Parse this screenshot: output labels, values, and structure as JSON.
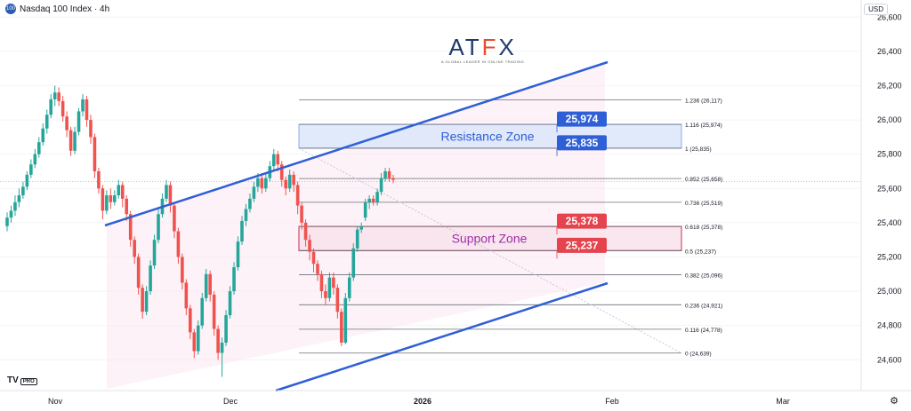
{
  "header": {
    "symbol_badge": "100",
    "title": "Nasdaq 100 Index · 4h"
  },
  "currency": "USD",
  "logo": {
    "text_a": "AT",
    "text_f": "F",
    "text_x": "X",
    "tagline": "A GLOBAL LEADER IN ONLINE TRADING"
  },
  "watermark": {
    "brand": "TV",
    "pro": "PRO"
  },
  "icons": {
    "settings": "gear-icon"
  },
  "colors": {
    "up": "#26a69a",
    "down": "#ef5350",
    "channel": "#2f5fd6",
    "resistance_label": "#2f5fd6",
    "support_label": "#e5434d",
    "zone_text_resistance": "#2f5fd6",
    "zone_text_support": "#9b2fa8"
  },
  "chart_data": {
    "type": "candlestick",
    "xlabels": [
      "Nov",
      "Dec",
      "2026",
      "Feb",
      "Mar"
    ],
    "ylim": [
      24420,
      26700
    ],
    "yticks": [
      "24,600",
      "24,800",
      "25,000",
      "25,200",
      "25,400",
      "25,600",
      "25,800",
      "26,000",
      "26,200",
      "26,400",
      "26,600"
    ],
    "ytick_values": [
      24600,
      24800,
      25000,
      25200,
      25400,
      25600,
      25800,
      26000,
      26200,
      26400,
      26600
    ],
    "fibonacci": [
      {
        "label": "1.236 (26,117)",
        "value": 26117
      },
      {
        "label": "1.116 (25,974)",
        "value": 25974
      },
      {
        "label": "1 (25,835)",
        "value": 25835
      },
      {
        "label": "0.852 (25,658)",
        "value": 25658
      },
      {
        "label": "0.736 (25,519)",
        "value": 25519
      },
      {
        "label": "0.618 (25,378)",
        "value": 25378
      },
      {
        "label": "0.5 (25,237)",
        "value": 25237
      },
      {
        "label": "0.382 (25,096)",
        "value": 25096
      },
      {
        "label": "0.236 (24,921)",
        "value": 24921
      },
      {
        "label": "0.116 (24,778)",
        "value": 24778
      },
      {
        "label": "0 (24,639)",
        "value": 24639
      }
    ],
    "resistance_zone": {
      "label": "Resistance Zone",
      "top": 25974,
      "bottom": 25835,
      "top_label": "25,974",
      "bottom_label": "25,835"
    },
    "support_zone": {
      "label": "Support Zone",
      "top": 25378,
      "bottom": 25237,
      "top_label": "25,378",
      "bottom_label": "25,237"
    },
    "current_price": 25640,
    "candles": [
      [
        25380,
        25430,
        25350,
        25460
      ],
      [
        25430,
        25470,
        25400,
        25500
      ],
      [
        25470,
        25520,
        25440,
        25560
      ],
      [
        25520,
        25560,
        25490,
        25600
      ],
      [
        25560,
        25610,
        25540,
        25640
      ],
      [
        25610,
        25680,
        25590,
        25700
      ],
      [
        25680,
        25740,
        25660,
        25770
      ],
      [
        25740,
        25800,
        25720,
        25830
      ],
      [
        25800,
        25870,
        25780,
        25900
      ],
      [
        25870,
        25950,
        25850,
        25980
      ],
      [
        25950,
        26030,
        25920,
        26060
      ],
      [
        26030,
        26120,
        26010,
        26150
      ],
      [
        26120,
        26160,
        26080,
        26200
      ],
      [
        26160,
        26110,
        26080,
        26190
      ],
      [
        26110,
        26020,
        25990,
        26140
      ],
      [
        26020,
        25940,
        25900,
        26050
      ],
      [
        25940,
        25820,
        25790,
        25960
      ],
      [
        25820,
        25930,
        25800,
        25960
      ],
      [
        25930,
        26050,
        25910,
        26070
      ],
      [
        26050,
        26120,
        26020,
        26150
      ],
      [
        26120,
        26000,
        25960,
        26140
      ],
      [
        26000,
        25900,
        25860,
        26030
      ],
      [
        25900,
        25700,
        25660,
        25920
      ],
      [
        25700,
        25600,
        25570,
        25720
      ],
      [
        25600,
        25470,
        25420,
        25620
      ],
      [
        25470,
        25560,
        25450,
        25590
      ],
      [
        25560,
        25520,
        25480,
        25600
      ],
      [
        25520,
        25560,
        25500,
        25590
      ],
      [
        25560,
        25620,
        25540,
        25650
      ],
      [
        25620,
        25540,
        25490,
        25640
      ],
      [
        25540,
        25450,
        25410,
        25560
      ],
      [
        25450,
        25300,
        25260,
        25470
      ],
      [
        25300,
        25200,
        25160,
        25320
      ],
      [
        25200,
        25020,
        24980,
        25220
      ],
      [
        25020,
        24880,
        24840,
        25040
      ],
      [
        24880,
        25000,
        24860,
        25030
      ],
      [
        25000,
        25150,
        24980,
        25180
      ],
      [
        25150,
        25300,
        25130,
        25330
      ],
      [
        25300,
        25450,
        25280,
        25480
      ],
      [
        25450,
        25540,
        25430,
        25570
      ],
      [
        25540,
        25620,
        25520,
        25650
      ],
      [
        25620,
        25500,
        25460,
        25640
      ],
      [
        25500,
        25350,
        25310,
        25520
      ],
      [
        25350,
        25200,
        25160,
        25370
      ],
      [
        25200,
        25050,
        25010,
        25220
      ],
      [
        25050,
        24900,
        24860,
        25070
      ],
      [
        24900,
        24760,
        24720,
        24920
      ],
      [
        24760,
        24650,
        24610,
        24780
      ],
      [
        24650,
        24800,
        24630,
        24830
      ],
      [
        24800,
        24960,
        24780,
        24990
      ],
      [
        24960,
        25100,
        24940,
        25130
      ],
      [
        25100,
        24980,
        24940,
        25120
      ],
      [
        24980,
        24780,
        24740,
        25000
      ],
      [
        24780,
        24640,
        24600,
        24800
      ],
      [
        24640,
        24700,
        24500,
        24730
      ],
      [
        24700,
        24860,
        24680,
        24890
      ],
      [
        24860,
        25000,
        24840,
        25030
      ],
      [
        25000,
        25140,
        24980,
        25170
      ],
      [
        25140,
        25290,
        25120,
        25320
      ],
      [
        25290,
        25410,
        25270,
        25440
      ],
      [
        25410,
        25480,
        25380,
        25510
      ],
      [
        25480,
        25540,
        25460,
        25570
      ],
      [
        25540,
        25610,
        25520,
        25640
      ],
      [
        25610,
        25660,
        25580,
        25690
      ],
      [
        25660,
        25600,
        25570,
        25690
      ],
      [
        25600,
        25660,
        25580,
        25690
      ],
      [
        25660,
        25730,
        25640,
        25760
      ],
      [
        25730,
        25800,
        25710,
        25830
      ],
      [
        25800,
        25740,
        25700,
        25820
      ],
      [
        25740,
        25650,
        25610,
        25760
      ],
      [
        25650,
        25600,
        25560,
        25670
      ],
      [
        25600,
        25680,
        25580,
        25710
      ],
      [
        25680,
        25620,
        25580,
        25700
      ],
      [
        25620,
        25500,
        25450,
        25640
      ],
      [
        25500,
        25400,
        25360,
        25520
      ],
      [
        25400,
        25300,
        25260,
        25420
      ],
      [
        25300,
        25230,
        25180,
        25330
      ],
      [
        25230,
        25160,
        25110,
        25250
      ],
      [
        25160,
        25100,
        25060,
        25180
      ],
      [
        25100,
        25000,
        24960,
        25120
      ],
      [
        25000,
        24960,
        24920,
        25040
      ],
      [
        24960,
        25080,
        24940,
        25110
      ],
      [
        25080,
        25020,
        24980,
        25110
      ],
      [
        25020,
        24880,
        24840,
        25040
      ],
      [
        24880,
        24700,
        24680,
        24900
      ],
      [
        24700,
        24960,
        24690,
        24990
      ],
      [
        24960,
        25080,
        24940,
        25110
      ],
      [
        25080,
        25250,
        25060,
        25280
      ],
      [
        25250,
        25360,
        25230,
        25380
      ],
      [
        25360,
        25380,
        25340,
        25400
      ],
      [
        25430,
        25520,
        25410,
        25540
      ],
      [
        25520,
        25540,
        25480,
        25560
      ],
      [
        25540,
        25520,
        25500,
        25560
      ],
      [
        25520,
        25580,
        25500,
        25600
      ],
      [
        25580,
        25660,
        25560,
        25690
      ],
      [
        25660,
        25700,
        25640,
        25720
      ],
      [
        25700,
        25660,
        25640,
        25720
      ],
      [
        25660,
        25650,
        25630,
        25680
      ]
    ]
  }
}
